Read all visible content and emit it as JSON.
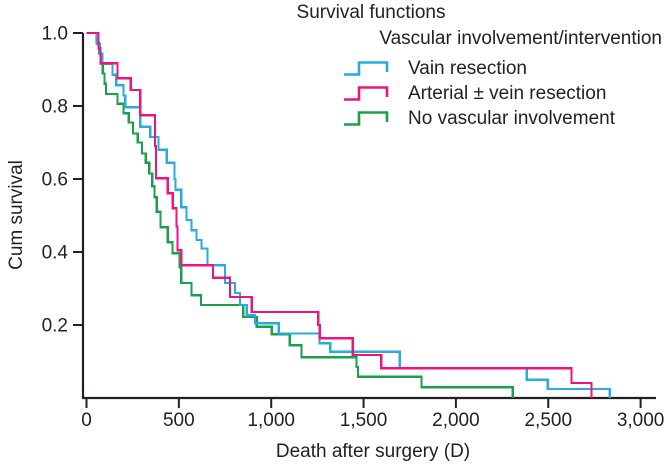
{
  "title": "Survival functions",
  "legend": {
    "title": "Vascular involvement/intervention",
    "items": [
      {
        "name": "vein-resection",
        "label": "Vain resection",
        "color": "#29ABE2"
      },
      {
        "name": "arterial-vein-resection",
        "label": "Arterial ± vein resection",
        "color": "#EC147D"
      },
      {
        "name": "no-vascular-involvement",
        "label": "No vascular involvement",
        "color": "#1AA04B"
      }
    ]
  },
  "axes": {
    "x": {
      "label": "Death after surgery (D)",
      "tick_values": [
        0,
        500,
        1000,
        1500,
        2000,
        2500,
        3000
      ],
      "tick_labels": [
        "0",
        "500",
        "1,000",
        "1,500",
        "2,000",
        "2,500",
        "3,000"
      ],
      "range": [
        0,
        3080
      ]
    },
    "y": {
      "label": "Cum survival",
      "tick_values": [
        1.0,
        0.8,
        0.6,
        0.4,
        0.2
      ],
      "tick_labels": [
        "1.0",
        "0.8",
        "0.6",
        "0.4",
        "0.2"
      ],
      "range": [
        0,
        1
      ]
    }
  },
  "chart_data": {
    "type": "line",
    "subtype": "kaplan-meier-step",
    "x_units": "days",
    "axis_color": "#231F20",
    "series": [
      {
        "name": "No vascular involvement",
        "color": "#1AA04B",
        "points": [
          [
            0,
            1.0
          ],
          [
            55,
            0.972
          ],
          [
            67,
            0.944
          ],
          [
            78,
            0.916
          ],
          [
            88,
            0.889
          ],
          [
            97,
            0.861
          ],
          [
            105,
            0.833
          ],
          [
            168,
            0.806
          ],
          [
            200,
            0.78
          ],
          [
            228,
            0.755
          ],
          [
            252,
            0.725
          ],
          [
            278,
            0.7
          ],
          [
            300,
            0.67
          ],
          [
            320,
            0.645
          ],
          [
            340,
            0.615
          ],
          [
            355,
            0.58
          ],
          [
            368,
            0.55
          ],
          [
            380,
            0.51
          ],
          [
            400,
            0.468
          ],
          [
            440,
            0.427
          ],
          [
            465,
            0.397
          ],
          [
            505,
            0.358
          ],
          [
            512,
            0.315
          ],
          [
            568,
            0.282
          ],
          [
            620,
            0.255
          ],
          [
            848,
            0.222
          ],
          [
            921,
            0.195
          ],
          [
            1003,
            0.175
          ],
          [
            1100,
            0.145
          ],
          [
            1164,
            0.112
          ],
          [
            1462,
            0.085
          ],
          [
            1470,
            0.058
          ],
          [
            1814,
            0.03
          ],
          [
            2307,
            0.0
          ]
        ]
      },
      {
        "name": "Vain resection",
        "color": "#29ABE2",
        "points": [
          [
            0,
            1.0
          ],
          [
            58,
            0.971
          ],
          [
            72,
            0.943
          ],
          [
            85,
            0.915
          ],
          [
            140,
            0.886
          ],
          [
            160,
            0.857
          ],
          [
            200,
            0.829
          ],
          [
            210,
            0.797
          ],
          [
            290,
            0.743
          ],
          [
            345,
            0.715
          ],
          [
            390,
            0.68
          ],
          [
            435,
            0.645
          ],
          [
            476,
            0.6
          ],
          [
            482,
            0.571
          ],
          [
            513,
            0.523
          ],
          [
            541,
            0.488
          ],
          [
            568,
            0.46
          ],
          [
            595,
            0.433
          ],
          [
            622,
            0.41
          ],
          [
            655,
            0.364
          ],
          [
            750,
            0.315
          ],
          [
            804,
            0.288
          ],
          [
            831,
            0.255
          ],
          [
            867,
            0.227
          ],
          [
            912,
            0.205
          ],
          [
            1040,
            0.177
          ],
          [
            1261,
            0.15
          ],
          [
            1320,
            0.127
          ],
          [
            1695,
            0.082
          ],
          [
            2383,
            0.05
          ],
          [
            2497,
            0.025
          ],
          [
            2832,
            0.0
          ]
        ]
      },
      {
        "name": "Arterial ± vein resection",
        "color": "#EC147D",
        "points": [
          [
            0,
            1.0
          ],
          [
            65,
            0.958
          ],
          [
            76,
            0.917
          ],
          [
            168,
            0.876
          ],
          [
            240,
            0.844
          ],
          [
            290,
            0.775
          ],
          [
            371,
            0.69
          ],
          [
            376,
            0.602
          ],
          [
            440,
            0.561
          ],
          [
            466,
            0.52
          ],
          [
            487,
            0.47
          ],
          [
            492,
            0.405
          ],
          [
            514,
            0.364
          ],
          [
            685,
            0.33
          ],
          [
            777,
            0.277
          ],
          [
            895,
            0.236
          ],
          [
            1255,
            0.2
          ],
          [
            1262,
            0.164
          ],
          [
            1442,
            0.118
          ],
          [
            1595,
            0.082
          ],
          [
            2626,
            0.041
          ],
          [
            2734,
            0.0
          ]
        ]
      }
    ]
  }
}
